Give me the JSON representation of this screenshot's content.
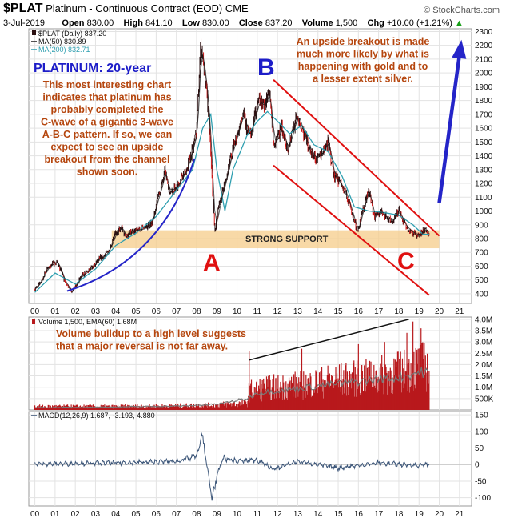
{
  "header": {
    "symbol": "$PLAT",
    "name": "Platinum - Continuous Contract (EOD)",
    "exchange": "CME",
    "brand": "© StockCharts.com",
    "date": "3-Jul-2019",
    "open_label": "Open",
    "open": "830.00",
    "high_label": "High",
    "high": "841.10",
    "low_label": "Low",
    "low": "830.00",
    "close_label": "Close",
    "close": "837.20",
    "volume_label": "Volume",
    "volume": "1,500",
    "chg_label": "Chg",
    "chg": "+10.00 (+1.21%)",
    "chg_arrow": "▲"
  },
  "legend": {
    "price": "$PLAT (Daily) 837.20",
    "ma50": "MA(50) 830.89",
    "ma200": "MA(200) 832.71",
    "volume": "Volume 1,500, EMA(60) 1.68M",
    "macd": "MACD(12,26,9) 1.687, -3.193, 4.880"
  },
  "annotations": {
    "platinum_title": "PLATINUM: 20-year",
    "left_text": [
      "This most interesting chart",
      "indicates that platinum has",
      "probably completed the",
      "C-wave of a gigantic 3-wave",
      "A-B-C pattern. If so, we can",
      "expect to see an upside",
      "breakout from the channel",
      "shown soon."
    ],
    "right_text": [
      "An upside breakout is made",
      "much more likely by what is",
      "happening with gold and to",
      "a lesser extent silver."
    ],
    "support": "STRONG SUPPORT",
    "wave_a": "A",
    "wave_b": "B",
    "wave_c": "C",
    "volume_text": [
      "Volume buildup to a high level suggests",
      "that a major reversal is not far away."
    ]
  },
  "colors": {
    "price": "#2a0f10",
    "down": "#d01818",
    "ma50": "#1a1a1a",
    "ma200": "#2f9fb0",
    "trend": "#2424c8",
    "channel": "#e01010",
    "support": "#f5cc8a",
    "volume": "#b8191c",
    "macd": "#3b5578",
    "annotation": "#b5460e",
    "title": "#1d1dc8"
  },
  "chart_data": [
    {
      "type": "line",
      "panel": "price",
      "ylim": [
        330,
        2320
      ],
      "yticks": [
        400,
        500,
        600,
        700,
        800,
        900,
        1000,
        1100,
        1200,
        1300,
        1400,
        1500,
        1600,
        1700,
        1800,
        1900,
        2000,
        2100,
        2200,
        2300
      ],
      "xlim": [
        1999.7,
        2021.6
      ],
      "xtick_years": [
        2000,
        2001,
        2002,
        2003,
        2004,
        2005,
        2006,
        2007,
        2008,
        2009,
        2010,
        2011,
        2012,
        2013,
        2014,
        2015,
        2016,
        2017,
        2018,
        2019,
        2020,
        2021
      ],
      "xtick_labels": [
        "00",
        "01",
        "02",
        "03",
        "04",
        "05",
        "06",
        "07",
        "08",
        "09",
        "10",
        "11",
        "12",
        "13",
        "14",
        "15",
        "16",
        "17",
        "18",
        "19",
        "20",
        "21"
      ],
      "series": [
        {
          "name": "$PLAT",
          "x": [
            2000.0,
            2000.3,
            2000.6,
            2000.9,
            2001.1,
            2001.3,
            2001.5,
            2001.8,
            2002.0,
            2002.3,
            2002.6,
            2002.9,
            2003.2,
            2003.5,
            2003.8,
            2004.0,
            2004.3,
            2004.5,
            2004.8,
            2005.0,
            2005.4,
            2005.8,
            2006.0,
            2006.3,
            2006.45,
            2006.6,
            2006.9,
            2007.2,
            2007.5,
            2007.8,
            2008.0,
            2008.2,
            2008.4,
            2008.6,
            2008.8,
            2008.9,
            2009.0,
            2009.2,
            2009.4,
            2009.7,
            2010.0,
            2010.3,
            2010.6,
            2010.9,
            2011.1,
            2011.3,
            2011.6,
            2011.8,
            2012.0,
            2012.2,
            2012.5,
            2012.8,
            2013.0,
            2013.3,
            2013.6,
            2013.9,
            2014.2,
            2014.5,
            2014.8,
            2015.1,
            2015.4,
            2015.7,
            2015.95,
            2016.2,
            2016.5,
            2016.8,
            2017.1,
            2017.4,
            2017.7,
            2018.0,
            2018.3,
            2018.6,
            2018.9,
            2019.1,
            2019.3,
            2019.5
          ],
          "y": [
            430,
            490,
            580,
            620,
            630,
            560,
            480,
            420,
            450,
            530,
            560,
            600,
            660,
            680,
            760,
            840,
            880,
            810,
            850,
            860,
            870,
            920,
            1050,
            1200,
            1300,
            1150,
            1160,
            1220,
            1300,
            1450,
            1580,
            2200,
            2000,
            1700,
            1100,
            850,
            950,
            1100,
            1200,
            1400,
            1550,
            1700,
            1530,
            1700,
            1800,
            1760,
            1850,
            1500,
            1520,
            1600,
            1450,
            1600,
            1700,
            1550,
            1450,
            1380,
            1420,
            1500,
            1250,
            1200,
            1120,
            980,
            850,
            1000,
            1150,
            950,
            1000,
            950,
            930,
            1000,
            900,
            850,
            830,
            830,
            870,
            840
          ]
        },
        {
          "name": "MA(200)",
          "x": [
            2000.0,
            2001.0,
            2002.0,
            2003.0,
            2004.0,
            2005.0,
            2006.0,
            2007.0,
            2007.8,
            2008.3,
            2008.7,
            2009.0,
            2009.4,
            2009.8,
            2010.5,
            2011.0,
            2011.5,
            2012.0,
            2012.6,
            2013.2,
            2013.8,
            2014.5,
            2015.2,
            2015.8,
            2016.5,
            2017.2,
            2018.0,
            2018.7,
            2019.2,
            2019.5
          ],
          "y": [
            410,
            550,
            470,
            580,
            750,
            840,
            960,
            1150,
            1300,
            1600,
            1700,
            1300,
            1000,
            1300,
            1550,
            1650,
            1720,
            1650,
            1560,
            1620,
            1480,
            1430,
            1250,
            1030,
            1000,
            990,
            970,
            900,
            830,
            833
          ]
        }
      ]
    },
    {
      "type": "bar",
      "panel": "volume",
      "ylim": [
        0,
        4100000
      ],
      "yticks": [
        500000,
        1000000,
        1500000,
        2000000,
        2500000,
        3000000,
        3500000,
        4000000
      ],
      "ytick_labels": [
        "500K",
        "1.0M",
        "1.5M",
        "2.0M",
        "2.5M",
        "3.0M",
        "3.5M",
        "4.0M"
      ],
      "series": [
        {
          "name": "Volume",
          "x": [
            2000.0,
            2004.0,
            2007.5,
            2009.0,
            2010.5,
            2010.6,
            2011.5,
            2012.5,
            2013.5,
            2014.5,
            2015.5,
            2016.5,
            2017.5,
            2018.5,
            2019.0,
            2019.5
          ],
          "y": [
            200000,
            200000,
            250000,
            300000,
            400000,
            1100000,
            1300000,
            1400000,
            1500000,
            1700000,
            1800000,
            1900000,
            2100000,
            2300000,
            2600000,
            2500000
          ]
        },
        {
          "name": "EMA(60)",
          "x": [
            2000.0,
            2004.0,
            2007.5,
            2009.0,
            2010.5,
            2011.0,
            2012.0,
            2013.0,
            2014.0,
            2015.0,
            2016.0,
            2017.0,
            2018.0,
            2019.0,
            2019.5
          ],
          "y": [
            100000,
            130000,
            180000,
            250000,
            500000,
            750000,
            850000,
            950000,
            1050000,
            1150000,
            1250000,
            1350000,
            1450000,
            1650000,
            1680000
          ]
        }
      ]
    },
    {
      "type": "line",
      "panel": "macd",
      "ylim": [
        -125,
        160
      ],
      "yticks": [
        -100,
        -50,
        0,
        50,
        100,
        150
      ],
      "ytick_labels": [
        "-100",
        "-50",
        "0",
        "50",
        "100",
        "150"
      ],
      "series": [
        {
          "name": "MACD(12,26,9)",
          "x": [
            2000.0,
            2004.0,
            2007.0,
            2008.0,
            2008.3,
            2008.5,
            2008.75,
            2009.0,
            2009.3,
            2010.0,
            2011.0,
            2011.8,
            2013.0,
            2015.0,
            2017.0,
            2019.0,
            2019.5
          ],
          "y": [
            2,
            5,
            10,
            25,
            90,
            0,
            -100,
            -40,
            20,
            10,
            15,
            -15,
            10,
            -10,
            5,
            -3,
            2
          ]
        }
      ]
    }
  ]
}
